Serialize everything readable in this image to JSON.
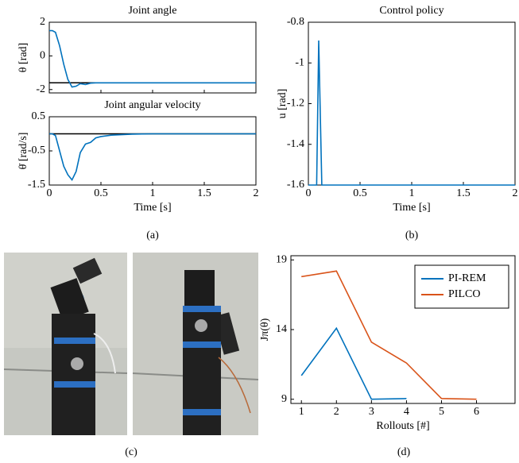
{
  "chart_data": [
    {
      "type": "line",
      "title": "Joint angle",
      "ylabel": "θ [rad]",
      "x": [
        0,
        0.03,
        0.06,
        0.1,
        0.14,
        0.18,
        0.22,
        0.26,
        0.3,
        0.35,
        0.4,
        0.45,
        0.5,
        0.6,
        0.8,
        1,
        1.5,
        2
      ],
      "series": [
        {
          "color": "#0072bd",
          "values": [
            1.5,
            1.5,
            1.4,
            0.6,
            -0.5,
            -1.4,
            -1.85,
            -1.8,
            -1.65,
            -1.7,
            -1.62,
            -1.6,
            -1.6,
            -1.6,
            -1.6,
            -1.6,
            -1.6,
            -1.6
          ]
        }
      ],
      "reference_line": {
        "value": -1.6,
        "color": "#000000"
      },
      "xlim": [
        0,
        2
      ],
      "xticks": [
        0,
        0.5,
        1,
        1.5,
        2
      ],
      "show_xtick_labels": false,
      "ylim": [
        -2.2,
        2
      ],
      "yticks": [
        2,
        0,
        -2
      ]
    },
    {
      "type": "line",
      "title": "Joint angular velocity",
      "ylabel": "θ̇ [rad/s]",
      "xlabel": "Time [s]",
      "x": [
        0,
        0.03,
        0.06,
        0.1,
        0.14,
        0.18,
        0.22,
        0.26,
        0.3,
        0.35,
        0.4,
        0.45,
        0.5,
        0.6,
        0.8,
        1,
        1.5,
        2
      ],
      "series": [
        {
          "color": "#0072bd",
          "values": [
            0,
            0,
            -0.05,
            -0.5,
            -0.95,
            -1.2,
            -1.35,
            -1.1,
            -0.55,
            -0.3,
            -0.25,
            -0.12,
            -0.08,
            -0.04,
            -0.01,
            0,
            0,
            0
          ]
        }
      ],
      "reference_line": {
        "value": 0,
        "color": "#000000"
      },
      "xlim": [
        0,
        2
      ],
      "xticks": [
        0,
        0.5,
        1,
        1.5,
        2
      ],
      "ylim": [
        -1.5,
        0.5
      ],
      "yticks": [
        0.5,
        -0.5,
        -1.5
      ]
    },
    {
      "type": "line",
      "title": "Control policy",
      "ylabel": "u [rad]",
      "xlabel": "Time [s]",
      "x": [
        0,
        0.08,
        0.1,
        0.13,
        0.15,
        2
      ],
      "series": [
        {
          "color": "#0072bd",
          "values": [
            -1.6,
            -1.6,
            -0.89,
            -1.6,
            -1.6,
            -1.6
          ]
        }
      ],
      "xlim": [
        0,
        2
      ],
      "xticks": [
        0,
        0.5,
        1,
        1.5,
        2
      ],
      "ylim": [
        -1.6,
        -0.8
      ],
      "yticks": [
        -0.8,
        -1,
        -1.2,
        -1.4,
        -1.6
      ]
    },
    {
      "type": "line",
      "ylabel": "Jπ(θ)",
      "xlabel": "Rollouts [#]",
      "x": [
        1,
        2,
        3,
        4,
        5,
        6
      ],
      "series": [
        {
          "name": "PI-REM",
          "color": "#0072bd",
          "values": [
            10.7,
            14.1,
            9.0,
            9.05,
            null,
            null
          ]
        },
        {
          "name": "PILCO",
          "color": "#d95319",
          "values": [
            17.8,
            18.2,
            13.1,
            11.6,
            9.05,
            9.0
          ]
        }
      ],
      "legend": "upper right",
      "xlim": [
        0.7,
        7.1
      ],
      "xticks": [
        1,
        2,
        3,
        4,
        5,
        6
      ],
      "ylim": [
        8.7,
        19.3
      ],
      "yticks": [
        19,
        14,
        9
      ]
    }
  ],
  "panel_labels": [
    "(a)",
    "(b)",
    "(c)",
    "(d)"
  ]
}
